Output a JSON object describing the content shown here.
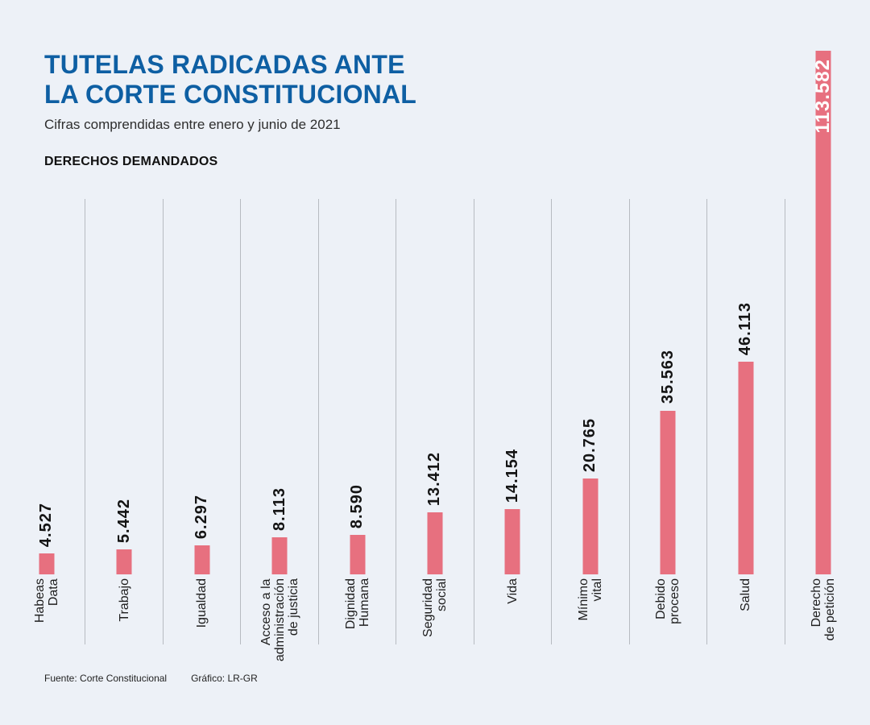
{
  "header": {
    "title_line1": "TUTELAS RADICADAS ANTE",
    "title_line2": "LA CORTE CONSTITUCIONAL",
    "subtitle": "Cifras comprendidas entre enero y junio de 2021",
    "section_label": "DERECHOS DEMANDADOS"
  },
  "footer": {
    "source": "Fuente: Corte Constitucional",
    "credit": "Gráfico: LR-GR"
  },
  "colors": {
    "background": "#edf1f7",
    "title_blue": "#0e5fa3",
    "bar_pink": "#e7707f",
    "gridline": "#b7bbc1"
  },
  "chart_data": {
    "type": "bar",
    "title": "TUTELAS RADICADAS ANTE LA CORTE CONSTITUCIONAL",
    "subtitle": "Cifras comprendidas entre enero y junio de 2021",
    "group_label": "DERECHOS DEMANDADOS",
    "orientation": "vertical",
    "grid": "vertical-separators-only",
    "ylim": [
      0,
      113582
    ],
    "categories": [
      "Habeas Data",
      "Trabajo",
      "Igualdad",
      "Acceso a la administración de justicia",
      "Dignidad Humana",
      "Seguridad social",
      "Vida",
      "Mínimo vital",
      "Debido proceso",
      "Salud",
      "Derecho de petición"
    ],
    "category_lines": [
      [
        "Habeas",
        "Data"
      ],
      [
        "Trabajo"
      ],
      [
        "Igualdad"
      ],
      [
        "Acceso a la",
        "administración",
        "de justicia"
      ],
      [
        "Dignidad",
        "Humana"
      ],
      [
        "Seguridad",
        "social"
      ],
      [
        "Vida"
      ],
      [
        "Mínimo",
        "vital"
      ],
      [
        "Debido",
        "proceso"
      ],
      [
        "Salud"
      ],
      [
        "Derecho",
        "de petición"
      ]
    ],
    "values": [
      4527,
      5442,
      6297,
      8113,
      8590,
      13412,
      14154,
      20765,
      35563,
      46113,
      113582
    ],
    "value_labels": [
      "4.527",
      "5.442",
      "6.297",
      "8.113",
      "8.590",
      "13.412",
      "14.154",
      "20.765",
      "35.563",
      "46.113",
      "113.582"
    ],
    "label_inside": [
      false,
      false,
      false,
      false,
      false,
      false,
      false,
      false,
      false,
      false,
      true
    ]
  }
}
